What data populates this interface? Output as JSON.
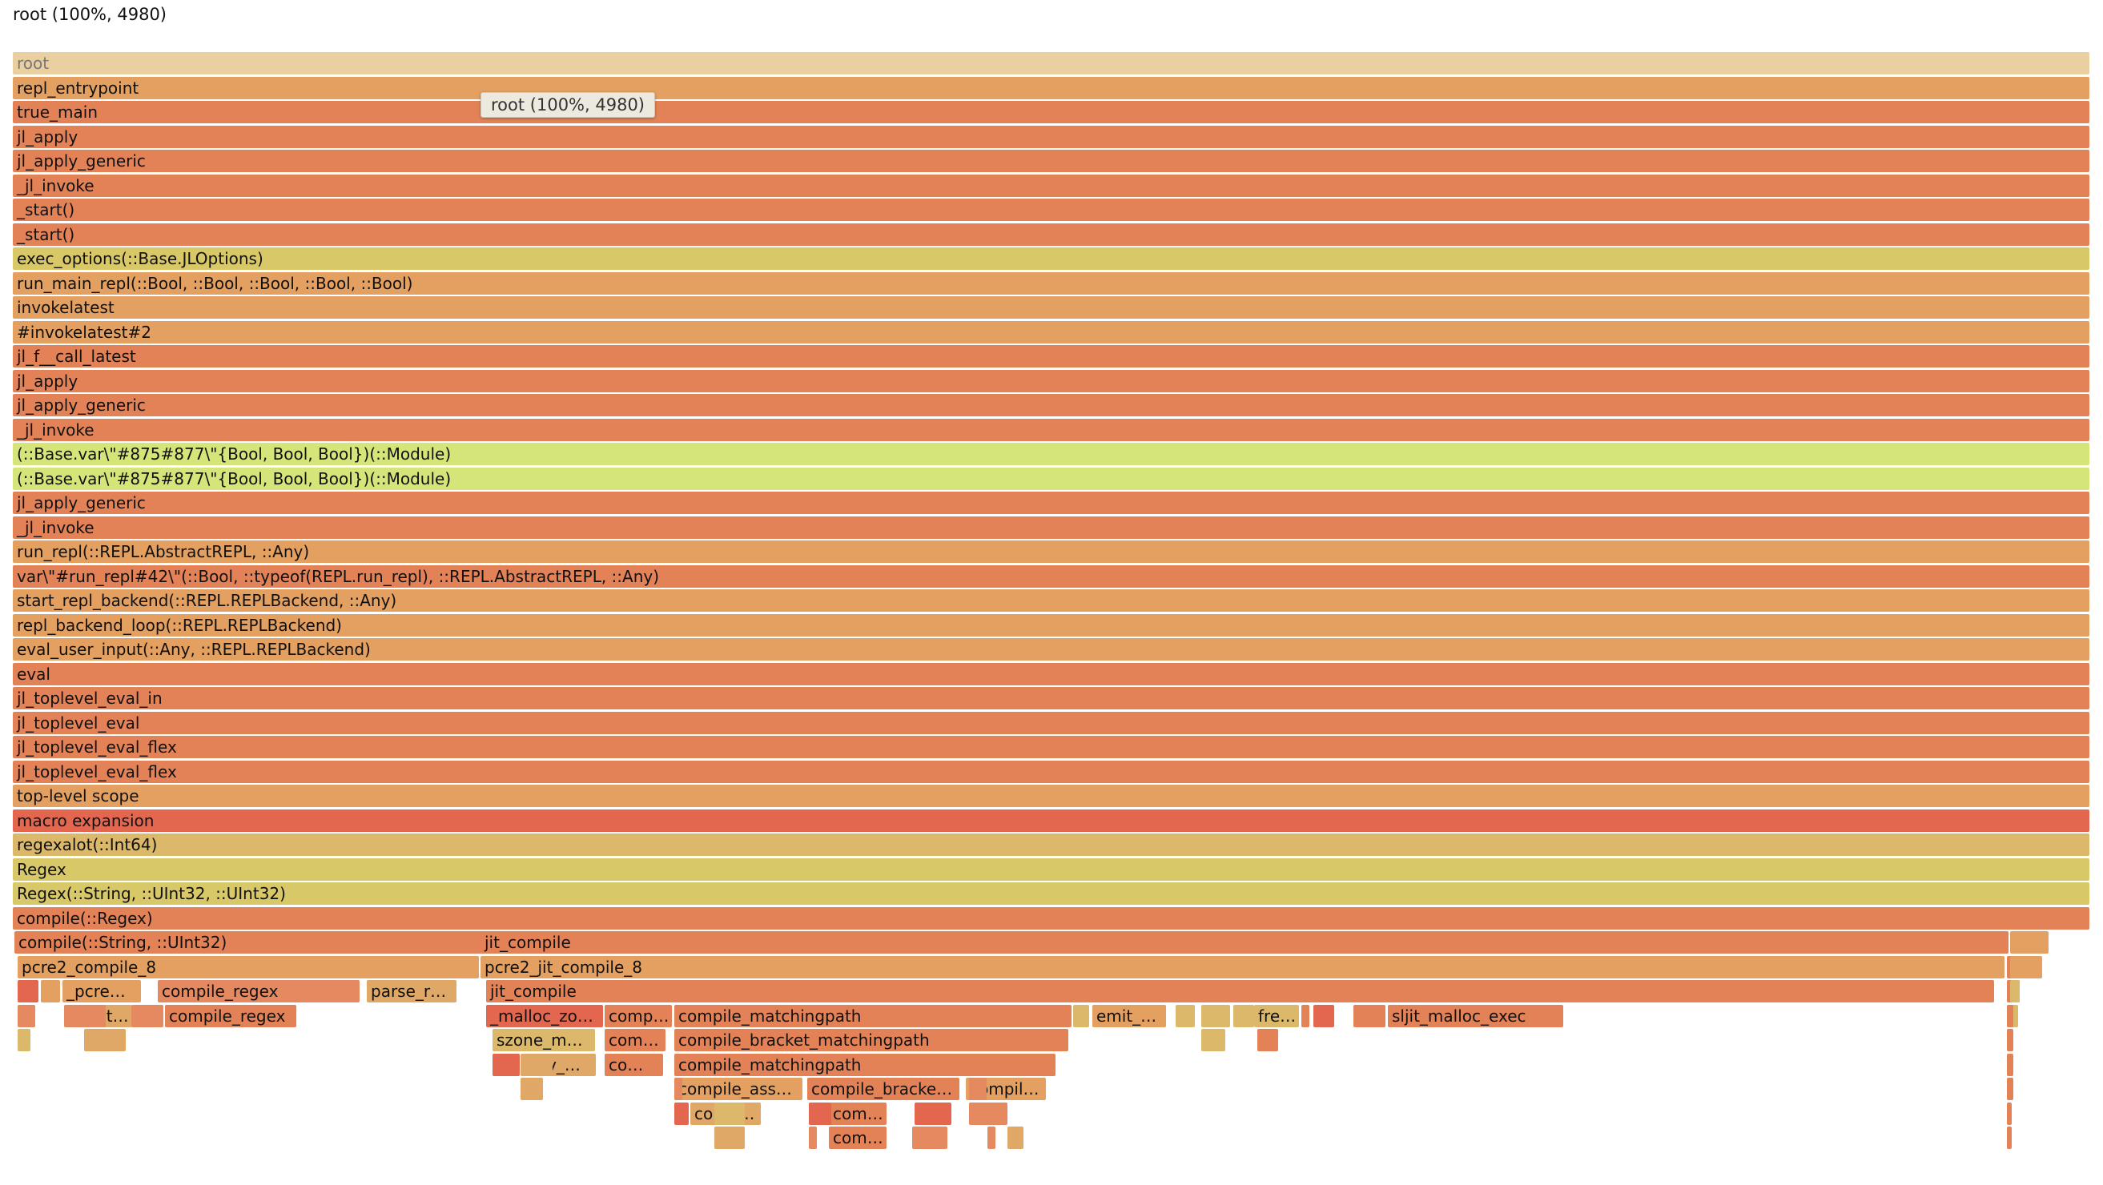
{
  "details_text": "root (100%, 4980)",
  "tooltip_text": "root (100%, 4980)",
  "palette": {
    "root": "#eacfa0",
    "orange": "#e38257",
    "tan": "#e3a060",
    "lighttan": "#e0a866",
    "yellow": "#d9c868",
    "lime": "#d6e57a",
    "red": "#e2674e",
    "salmon": "#e58960",
    "gold": "#dbb86a"
  },
  "stack": [
    {
      "label": "root",
      "color": "root"
    },
    {
      "label": "repl_entrypoint",
      "color": "tan"
    },
    {
      "label": "true_main",
      "color": "orange"
    },
    {
      "label": "jl_apply",
      "color": "orange"
    },
    {
      "label": "jl_apply_generic",
      "color": "orange"
    },
    {
      "label": "_jl_invoke",
      "color": "orange"
    },
    {
      "label": "_start()",
      "color": "orange"
    },
    {
      "label": "_start()",
      "color": "orange"
    },
    {
      "label": "exec_options(::Base.JLOptions)",
      "color": "yellow"
    },
    {
      "label": "run_main_repl(::Bool, ::Bool, ::Bool, ::Bool, ::Bool)",
      "color": "tan"
    },
    {
      "label": "invokelatest",
      "color": "tan"
    },
    {
      "label": "#invokelatest#2",
      "color": "tan"
    },
    {
      "label": "jl_f__call_latest",
      "color": "orange"
    },
    {
      "label": "jl_apply",
      "color": "orange"
    },
    {
      "label": "jl_apply_generic",
      "color": "orange"
    },
    {
      "label": "_jl_invoke",
      "color": "orange"
    },
    {
      "label": "(::Base.var\\\"#875#877\\\"{Bool, Bool, Bool})(::Module)",
      "color": "lime"
    },
    {
      "label": "(::Base.var\\\"#875#877\\\"{Bool, Bool, Bool})(::Module)",
      "color": "lime"
    },
    {
      "label": "jl_apply_generic",
      "color": "orange"
    },
    {
      "label": "_jl_invoke",
      "color": "orange"
    },
    {
      "label": "run_repl(::REPL.AbstractREPL, ::Any)",
      "color": "tan"
    },
    {
      "label": "var\\\"#run_repl#42\\\"(::Bool, ::typeof(REPL.run_repl), ::REPL.AbstractREPL, ::Any)",
      "color": "orange"
    },
    {
      "label": "start_repl_backend(::REPL.REPLBackend, ::Any)",
      "color": "tan"
    },
    {
      "label": "repl_backend_loop(::REPL.REPLBackend)",
      "color": "tan"
    },
    {
      "label": "eval_user_input(::Any, ::REPL.REPLBackend)",
      "color": "tan"
    },
    {
      "label": "eval",
      "color": "orange"
    },
    {
      "label": "jl_toplevel_eval_in",
      "color": "orange"
    },
    {
      "label": "jl_toplevel_eval",
      "color": "orange"
    },
    {
      "label": "jl_toplevel_eval_flex",
      "color": "orange"
    },
    {
      "label": "jl_toplevel_eval_flex",
      "color": "orange"
    },
    {
      "label": "top-level scope",
      "color": "tan"
    },
    {
      "label": "macro expansion",
      "color": "red"
    },
    {
      "label": "regexalot(::Int64)",
      "color": "gold"
    },
    {
      "label": "Regex",
      "color": "yellow"
    },
    {
      "label": "Regex(::String, ::UInt32, ::UInt32)",
      "color": "yellow"
    },
    {
      "label": "compile(::Regex)",
      "color": "orange"
    }
  ],
  "lower_frames": [
    {
      "level": 36,
      "label": "compile(::String, ::UInt32)",
      "color": "orange"
    },
    {
      "level": 36,
      "label": "jit_compile",
      "color": "orange"
    },
    {
      "level": 37,
      "label": "pcre2_compile_8",
      "color": "tan"
    },
    {
      "level": 37,
      "label": "pcre2_jit_compile_8",
      "color": "tan"
    },
    {
      "level": 38,
      "label": "",
      "color": "red"
    },
    {
      "level": 38,
      "label": "",
      "color": "tan"
    },
    {
      "level": 38,
      "label": "_pcre…",
      "color": "tan"
    },
    {
      "level": 38,
      "label": "compile_regex",
      "color": "salmon"
    },
    {
      "level": 38,
      "label": "parse_r…",
      "color": "lighttan"
    },
    {
      "level": 38,
      "label": "jit_compile",
      "color": "orange"
    },
    {
      "level": 39,
      "label": "set…",
      "color": "lighttan"
    },
    {
      "level": 39,
      "label": "compile_regex",
      "color": "orange"
    },
    {
      "level": 39,
      "label": "_malloc_zo…",
      "color": "red"
    },
    {
      "level": 39,
      "label": "comp…",
      "color": "orange"
    },
    {
      "level": 39,
      "label": "compile_matchingpath",
      "color": "orange"
    },
    {
      "level": 39,
      "label": "emit_…",
      "color": "tan"
    },
    {
      "level": 39,
      "label": "fre…",
      "color": "gold"
    },
    {
      "level": 39,
      "label": "sljit_malloc_exec",
      "color": "orange"
    },
    {
      "level": 40,
      "label": "szone_m…",
      "color": "gold"
    },
    {
      "level": 40,
      "label": "com…",
      "color": "orange"
    },
    {
      "level": 40,
      "label": "compile_bracket_matchingpath",
      "color": "orange"
    },
    {
      "level": 41,
      "label": "tiny_…",
      "color": "lighttan"
    },
    {
      "level": 41,
      "label": "co…",
      "color": "orange"
    },
    {
      "level": 41,
      "label": "compile_matchingpath",
      "color": "orange"
    },
    {
      "level": 42,
      "label": "compile_ass…",
      "color": "tan"
    },
    {
      "level": 42,
      "label": "compile_bracke…",
      "color": "orange"
    },
    {
      "level": 42,
      "label": "compil…",
      "color": "tan"
    },
    {
      "level": 43,
      "label": "comp…",
      "color": "lighttan"
    },
    {
      "level": 43,
      "label": "com…",
      "color": "orange"
    },
    {
      "level": 44,
      "label": "com…",
      "color": "orange"
    },
    {
      "level": 38,
      "label": "",
      "color": "tan"
    },
    {
      "level": 39,
      "label": "",
      "color": "salmon"
    },
    {
      "level": 39,
      "label": "",
      "color": "salmon"
    },
    {
      "level": 39,
      "label": "",
      "color": "salmon"
    },
    {
      "level": 39,
      "label": "",
      "color": "gold"
    },
    {
      "level": 39,
      "label": "",
      "color": "gold"
    },
    {
      "level": 39,
      "label": "",
      "color": "gold"
    },
    {
      "level": 39,
      "label": "",
      "color": "gold"
    },
    {
      "level": 39,
      "label": "",
      "color": "red"
    },
    {
      "level": 39,
      "label": "",
      "color": "orange"
    },
    {
      "level": 39,
      "label": "",
      "color": "gold"
    },
    {
      "level": 39,
      "label": "",
      "color": "orange"
    },
    {
      "level": 40,
      "label": "",
      "color": "gold"
    },
    {
      "level": 40,
      "label": "",
      "color": "lighttan"
    },
    {
      "level": 40,
      "label": "",
      "color": "gold"
    },
    {
      "level": 40,
      "label": "",
      "color": "orange"
    },
    {
      "level": 41,
      "label": "",
      "color": "red"
    },
    {
      "level": 41,
      "label": "",
      "color": "lighttan"
    },
    {
      "level": 42,
      "label": "",
      "color": "lighttan"
    },
    {
      "level": 42,
      "label": "",
      "color": "salmon"
    },
    {
      "level": 42,
      "label": "",
      "color": "salmon"
    },
    {
      "level": 43,
      "label": "",
      "color": "red"
    },
    {
      "level": 43,
      "label": "",
      "color": "gold"
    },
    {
      "level": 43,
      "label": "",
      "color": "red"
    },
    {
      "level": 43,
      "label": "",
      "color": "red"
    },
    {
      "level": 43,
      "label": "",
      "color": "salmon"
    },
    {
      "level": 44,
      "label": "",
      "color": "lighttan"
    },
    {
      "level": 44,
      "label": "",
      "color": "salmon"
    },
    {
      "level": 44,
      "label": "",
      "color": "salmon"
    },
    {
      "level": 44,
      "label": "",
      "color": "salmon"
    },
    {
      "level": 44,
      "label": "",
      "color": "lighttan"
    },
    {
      "level": 37,
      "label": "",
      "color": "orange"
    },
    {
      "level": 38,
      "label": "",
      "color": "orange"
    },
    {
      "level": 39,
      "label": "",
      "color": "orange"
    },
    {
      "level": 40,
      "label": "",
      "color": "orange"
    },
    {
      "level": 41,
      "label": "",
      "color": "orange"
    },
    {
      "level": 42,
      "label": "",
      "color": "orange"
    },
    {
      "level": 43,
      "label": "",
      "color": "orange"
    },
    {
      "level": 44,
      "label": "",
      "color": "orange"
    },
    {
      "level": 36,
      "label": "",
      "color": "tan"
    },
    {
      "level": 37,
      "label": "",
      "color": "tan"
    },
    {
      "level": 38,
      "label": "",
      "color": "gold"
    }
  ]
}
